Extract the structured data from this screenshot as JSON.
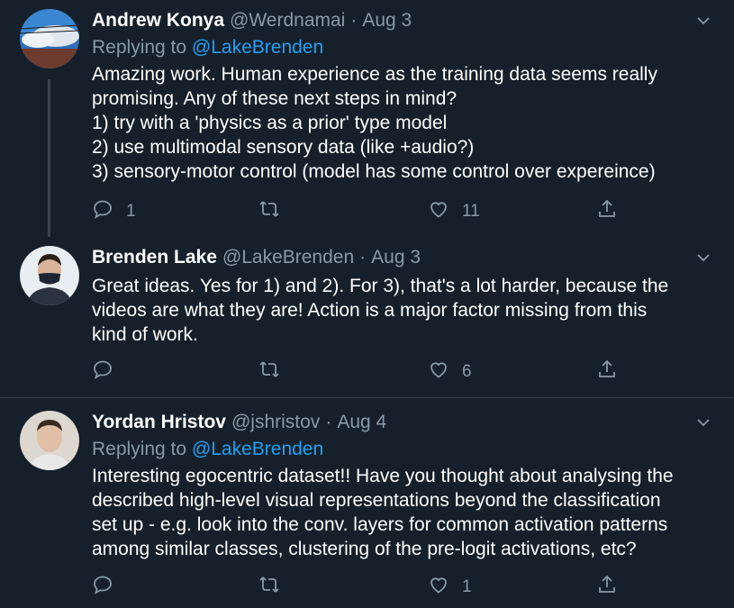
{
  "tweets": [
    {
      "name": "Andrew Konya",
      "handle": "@Werdnamai",
      "separator": "·",
      "date": "Aug 3",
      "replying_prefix": "Replying to",
      "replying_to": "@LakeBrenden",
      "text": "Amazing work. Human experience as the training data seems really\npromising. Any of these next steps in mind?\n1) try with a 'physics as a prior' type model\n2) use multimodal sensory data (like +audio?)\n3) sensory-motor control (model has some control over expereince)",
      "replies": "1",
      "retweets": "",
      "likes": "11"
    },
    {
      "name": "Brenden Lake",
      "handle": "@LakeBrenden",
      "separator": "·",
      "date": "Aug 3",
      "text": "Great ideas. Yes for 1) and 2). For 3), that's a lot harder, because the\nvideos are what they are! Action is a major factor missing from this\nkind of work.",
      "replies": "",
      "retweets": "",
      "likes": "6"
    },
    {
      "name": "Yordan Hristov",
      "handle": "@jshristov",
      "separator": "·",
      "date": "Aug 4",
      "replying_prefix": "Replying to",
      "replying_to": "@LakeBrenden",
      "text": "Interesting egocentric dataset!! Have you thought about analysing the\ndescribed high-level visual representations beyond the classification\nset up - e.g. look into the conv. layers for common activation patterns\namong similar classes, clustering of the pre-logit activations, etc?",
      "replies": "",
      "retweets": "",
      "likes": "1"
    }
  ],
  "colors": {
    "background": "#15202b",
    "secondary_text": "#8899a6",
    "link": "#1da1f2",
    "divider": "#38444d"
  },
  "icons": [
    "reply-icon",
    "retweet-icon",
    "like-icon",
    "share-icon",
    "chevron-down-icon"
  ]
}
